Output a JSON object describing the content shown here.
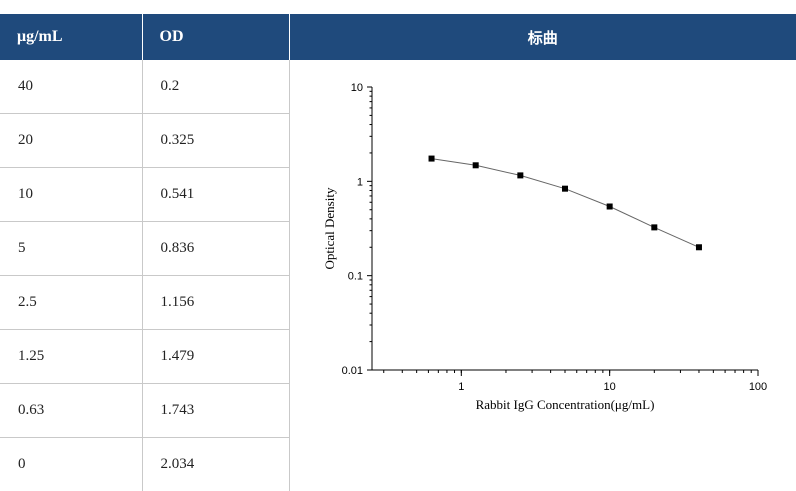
{
  "table": {
    "headers": {
      "conc": "μg/mL",
      "od": "OD",
      "curve": "标曲"
    },
    "rows": [
      {
        "conc": "40",
        "od": "0.2"
      },
      {
        "conc": "20",
        "od": "0.325"
      },
      {
        "conc": "10",
        "od": "0.541"
      },
      {
        "conc": "5",
        "od": "0.836"
      },
      {
        "conc": "2.5",
        "od": "1.156"
      },
      {
        "conc": "1.25",
        "od": "1.479"
      },
      {
        "conc": "0.63",
        "od": "1.743"
      },
      {
        "conc": "0",
        "od": "2.034"
      }
    ]
  },
  "colors": {
    "header_bg": "#1f4a7c",
    "header_text": "#ffffff",
    "grid": "#c9c9c9",
    "line": "#666666",
    "marker": "#000000"
  },
  "chart_data": {
    "type": "line",
    "xlabel": "Rabbit IgG Concentration(μg/mL)",
    "ylabel": "Optical Density",
    "xscale": "log",
    "yscale": "log",
    "xlim": [
      0.25,
      100
    ],
    "ylim": [
      0.01,
      10
    ],
    "xticks": [
      1,
      10,
      100
    ],
    "xtick_labels": [
      "1",
      "10",
      "100"
    ],
    "yticks": [
      10,
      1,
      0.1,
      0.01
    ],
    "ytick_labels": [
      "10",
      "1",
      "0.1",
      "0.01"
    ],
    "legend": "none",
    "grid": false,
    "x": [
      0.63,
      1.25,
      2.5,
      5,
      10,
      20,
      40
    ],
    "y": [
      1.743,
      1.479,
      1.156,
      0.836,
      0.541,
      0.325,
      0.2
    ]
  }
}
